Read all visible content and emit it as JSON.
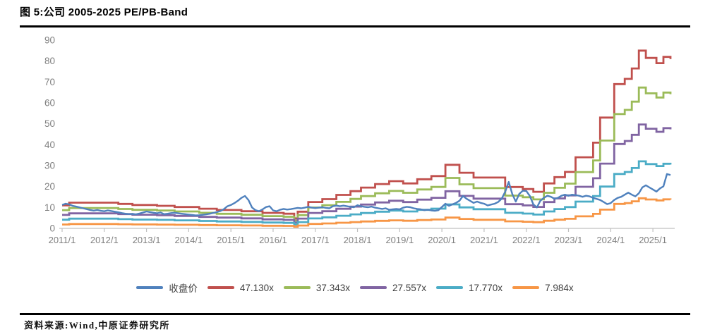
{
  "figure": {
    "title": "图 5:公司 2005-2025 PE/PB-Band",
    "source": "资料来源:Wind,中原证券研究所"
  },
  "chart_data": {
    "type": "line",
    "title": "公司 2005-2025 PE/PB-Band",
    "grid": false,
    "legend_position": "bottom",
    "ylim": [
      0,
      90
    ],
    "y_ticks": [
      0,
      10,
      20,
      30,
      40,
      50,
      60,
      70,
      80,
      90
    ],
    "x_tick_labels": [
      "2011/1",
      "2012/1",
      "2013/1",
      "2014/1",
      "2015/1",
      "2016/1",
      "2017/1",
      "2018/1",
      "2019/1",
      "2020/1",
      "2021/1",
      "2022/1",
      "2023/1",
      "2024/1",
      "2025/1"
    ],
    "x_resolution": "monthly 2011/1 - 2025/6",
    "axis_color": "#c0c0c0",
    "tick_label_color": "#808080",
    "legend": [
      {
        "label": "收盘价",
        "color": "#4F81BD"
      },
      {
        "label": "47.130x",
        "color": "#C0504D"
      },
      {
        "label": "37.343x",
        "color": "#9BBB59"
      },
      {
        "label": "27.557x",
        "color": "#8064A2"
      },
      {
        "label": "17.770x",
        "color": "#4BACC6"
      },
      {
        "label": "7.984x",
        "color": "#F79646"
      }
    ],
    "pe_multiples": [
      47.13,
      37.343,
      27.557,
      17.77,
      7.984
    ],
    "band_colors": [
      "#C0504D",
      "#9BBB59",
      "#8064A2",
      "#4BACC6",
      "#F79646"
    ],
    "note_bands": "Bands are step lines; each band value = top_band_value * multiple / 47.130",
    "red_band_step_breakpoints": [
      [
        0,
        11.0
      ],
      [
        2,
        12.3
      ],
      [
        16,
        11.7
      ],
      [
        20,
        11.2
      ],
      [
        27,
        10.8
      ],
      [
        32,
        10.2
      ],
      [
        39,
        9.4
      ],
      [
        44,
        8.8
      ],
      [
        51,
        8.2
      ],
      [
        57,
        7.4
      ],
      [
        63,
        7.0
      ],
      [
        66,
        4.8
      ],
      [
        67,
        8.0
      ],
      [
        70,
        12.6
      ],
      [
        74,
        14.0
      ],
      [
        78,
        16.0
      ],
      [
        82,
        17.8
      ],
      [
        85,
        19.5
      ],
      [
        89,
        21.2
      ],
      [
        93,
        22.6
      ],
      [
        97,
        21.5
      ],
      [
        101,
        23.5
      ],
      [
        105,
        25.0
      ],
      [
        109,
        30.4
      ],
      [
        113,
        26.6
      ],
      [
        117,
        24.3
      ],
      [
        126,
        19.8
      ],
      [
        131,
        18.8
      ],
      [
        134,
        17.5
      ],
      [
        137,
        21.5
      ],
      [
        140,
        24.5
      ],
      [
        143,
        27.0
      ],
      [
        146,
        34.0
      ],
      [
        151,
        41.0
      ],
      [
        153,
        53.0
      ],
      [
        157,
        69.0
      ],
      [
        160,
        71.5
      ],
      [
        162,
        76.5
      ],
      [
        164,
        85.0
      ],
      [
        166,
        81.5
      ],
      [
        169,
        79.0
      ],
      [
        171,
        82.0
      ],
      [
        173,
        81.0
      ]
    ],
    "price_series_name": "收盘价",
    "price_color": "#4F81BD",
    "price_monthly": [
      11.2,
      11.8,
      11.5,
      10.8,
      10.4,
      10.0,
      9.6,
      9.2,
      8.8,
      8.5,
      8.8,
      8.4,
      8.2,
      8.6,
      8.3,
      8.0,
      7.7,
      7.3,
      7.0,
      6.8,
      6.9,
      6.7,
      7.1,
      7.6,
      8.1,
      7.8,
      7.5,
      7.2,
      7.6,
      6.8,
      7.0,
      7.3,
      7.5,
      7.2,
      7.0,
      6.8,
      6.6,
      6.4,
      6.2,
      6.3,
      6.5,
      6.7,
      7.0,
      7.4,
      7.8,
      8.3,
      9.2,
      10.6,
      11.2,
      12.1,
      13.2,
      14.6,
      15.5,
      13.5,
      10.0,
      8.7,
      8.2,
      9.1,
      10.2,
      10.6,
      8.6,
      8.2,
      8.9,
      9.3,
      9.0,
      9.2,
      9.5,
      9.8,
      9.6,
      9.9,
      10.3,
      9.9,
      9.7,
      9.9,
      10.1,
      9.8,
      9.6,
      10.6,
      10.9,
      10.6,
      10.9,
      10.6,
      10.3,
      10.1,
      11.1,
      10.6,
      10.3,
      10.1,
      10.4,
      9.9,
      9.6,
      9.3,
      9.6,
      8.9,
      9.1,
      9.3,
      9.1,
      9.9,
      10.3,
      10.1,
      9.6,
      9.3,
      9.1,
      8.7,
      8.9,
      8.6,
      8.4,
      8.7,
      10.2,
      11.8,
      10.8,
      11.5,
      12.2,
      13.2,
      15.5,
      14.2,
      13.2,
      12.2,
      12.8,
      12.2,
      11.8,
      11.0,
      11.4,
      11.8,
      12.6,
      14.2,
      17.5,
      22.2,
      16.5,
      12.8,
      16.5,
      18.0,
      17.9,
      15.5,
      11.5,
      10.0,
      13.2,
      14.6,
      15.6,
      15.1,
      14.2,
      14.6,
      15.6,
      16.1,
      15.6,
      16.1,
      15.9,
      15.6,
      15.1,
      15.6,
      15.3,
      14.6,
      14.1,
      13.6,
      12.6,
      11.6,
      12.1,
      13.6,
      14.6,
      15.1,
      16.1,
      17.1,
      16.1,
      15.3,
      16.8,
      19.6,
      20.6,
      19.6,
      18.6,
      17.6,
      19.1,
      20.1,
      26.0,
      25.5
    ]
  }
}
